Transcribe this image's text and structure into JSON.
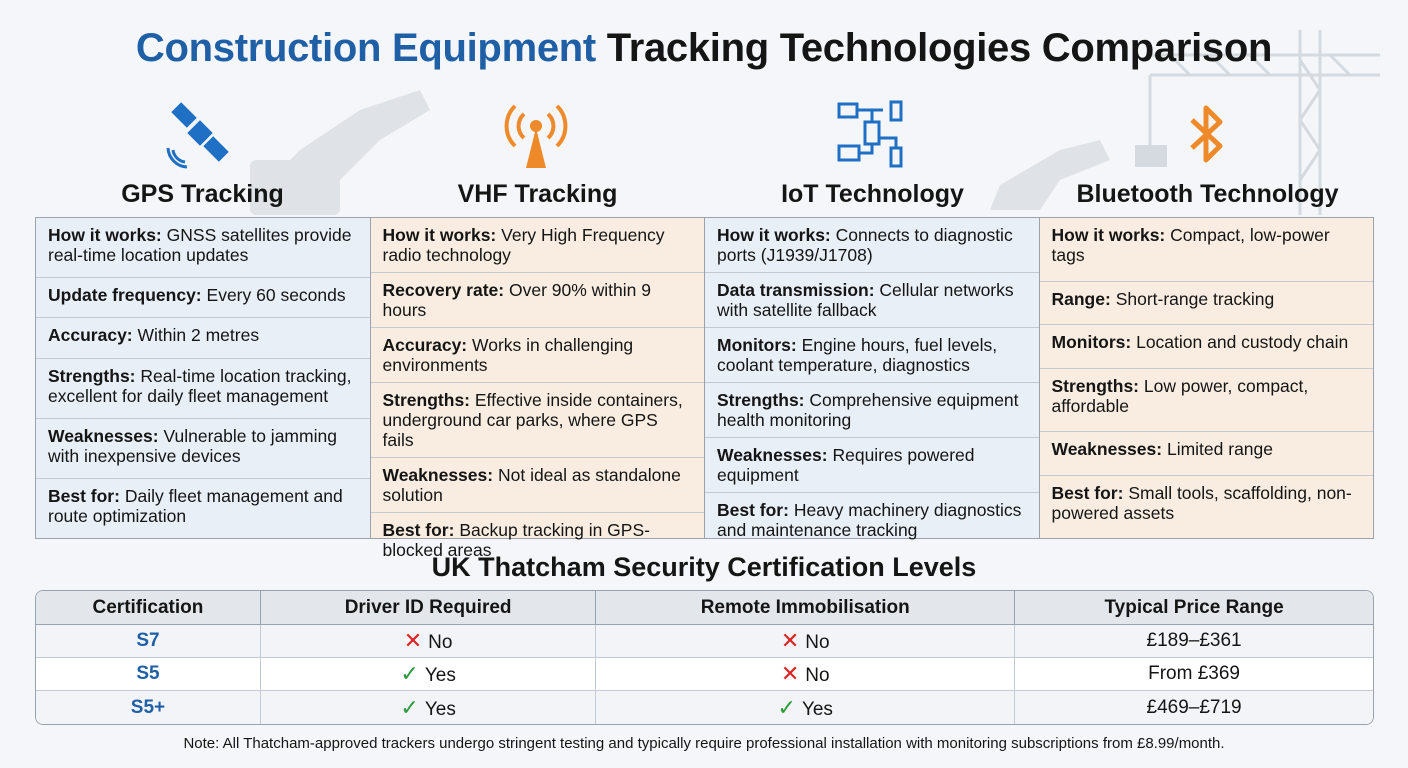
{
  "title": {
    "highlight": "Construction Equipment",
    "rest": "Tracking Technologies Comparison"
  },
  "columns": [
    {
      "title": "GPS Tracking",
      "rows": [
        {
          "label": "How it works:",
          "text": "GNSS satellites provide real-time location updates"
        },
        {
          "label": "Update frequency:",
          "text": "Every 60 seconds"
        },
        {
          "label": "Accuracy:",
          "text": "Within 2 metres"
        },
        {
          "label": "Strengths:",
          "text": "Real-time location tracking, excellent for daily fleet management"
        },
        {
          "label": "Weaknesses:",
          "text": "Vulnerable to jamming with inexpensive devices"
        },
        {
          "label": "Best for:",
          "text": "Daily fleet management and route optimization"
        }
      ]
    },
    {
      "title": "VHF Tracking",
      "rows": [
        {
          "label": "How it works:",
          "text": "Very High Frequency radio technology"
        },
        {
          "label": "Recovery rate:",
          "text": "Over 90% within 9 hours"
        },
        {
          "label": "Accuracy:",
          "text": "Works in challenging environments"
        },
        {
          "label": "Strengths:",
          "text": "Effective inside containers, underground car parks, where GPS fails"
        },
        {
          "label": "Weaknesses:",
          "text": "Not ideal as standalone solution"
        },
        {
          "label": "Best for:",
          "text": "Backup tracking in GPS-blocked areas"
        }
      ]
    },
    {
      "title": "IoT Technology",
      "rows": [
        {
          "label": "How it works:",
          "text": "Connects to diagnostic ports (J1939/J1708)"
        },
        {
          "label": "Data transmission:",
          "text": "Cellular networks with satellite fallback"
        },
        {
          "label": "Monitors:",
          "text": "Engine hours, fuel levels, coolant temperature, diagnostics"
        },
        {
          "label": "Strengths:",
          "text": "Comprehensive equipment health monitoring"
        },
        {
          "label": "Weaknesses:",
          "text": "Requires powered equipment"
        },
        {
          "label": "Best for:",
          "text": "Heavy machinery diagnostics and maintenance tracking"
        }
      ]
    },
    {
      "title": "Bluetooth Technology",
      "rows": [
        {
          "label": "How it works:",
          "text": "Compact, low-power tags"
        },
        {
          "label": "Range:",
          "text": "Short-range tracking"
        },
        {
          "label": "Monitors:",
          "text": "Location and custody chain"
        },
        {
          "label": "Strengths:",
          "text": "Low power, compact, affordable"
        },
        {
          "label": "Weaknesses:",
          "text": "Limited range"
        },
        {
          "label": "Best for:",
          "text": "Small tools, scaffolding, non-powered assets"
        }
      ]
    }
  ],
  "certification": {
    "title": "UK Thatcham Security Certification Levels",
    "headers": [
      "Certification",
      "Driver ID Required",
      "Remote Immobilisation",
      "Typical Price Range"
    ],
    "rows": [
      [
        "S7",
        "No",
        "No",
        "£189–£361"
      ],
      [
        "S5",
        "Yes",
        "No",
        "From £369"
      ],
      [
        "S5+",
        "Yes",
        "Yes",
        "£469–£719"
      ]
    ]
  },
  "note": "Note: All Thatcham-approved trackers undergo stringent testing and typically require professional installation with monitoring subscriptions from £8.99/month."
}
